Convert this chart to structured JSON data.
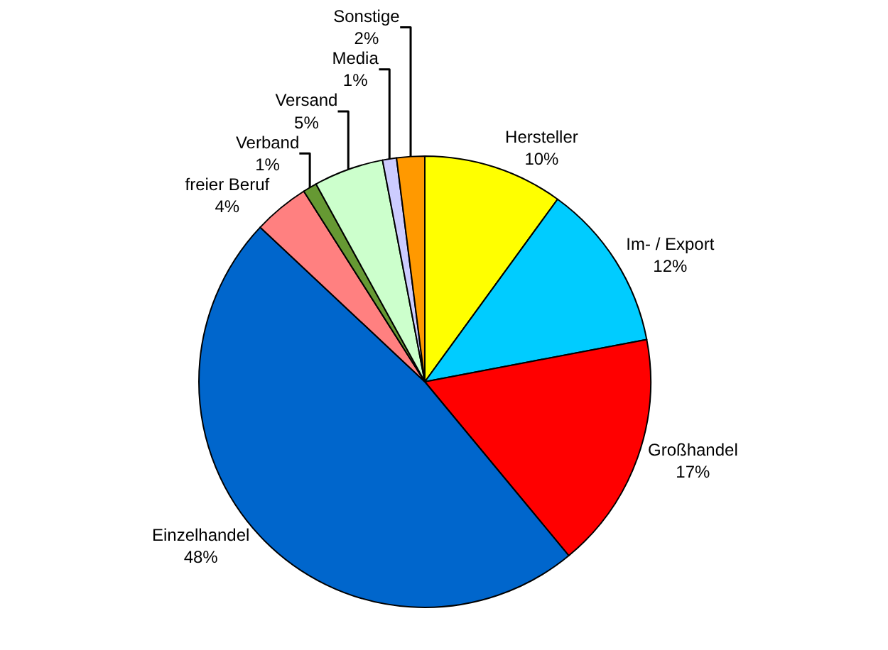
{
  "chart_data": {
    "type": "pie",
    "categories": [
      "Hersteller",
      "Im- / Export",
      "Großhandel",
      "Einzelhandel",
      "freier Beruf",
      "Verband",
      "Versand",
      "Media",
      "Sonstige"
    ],
    "values": [
      10,
      12,
      17,
      48,
      4,
      1,
      5,
      1,
      2
    ],
    "value_labels": [
      "10%",
      "12%",
      "17%",
      "48%",
      "4%",
      "1%",
      "5%",
      "1%",
      "2%"
    ],
    "colors": [
      "#ffff00",
      "#00ccff",
      "#ff0000",
      "#0066cc",
      "#ff8080",
      "#669933",
      "#ccffcc",
      "#ccccff",
      "#ff9900"
    ],
    "legend": false
  }
}
